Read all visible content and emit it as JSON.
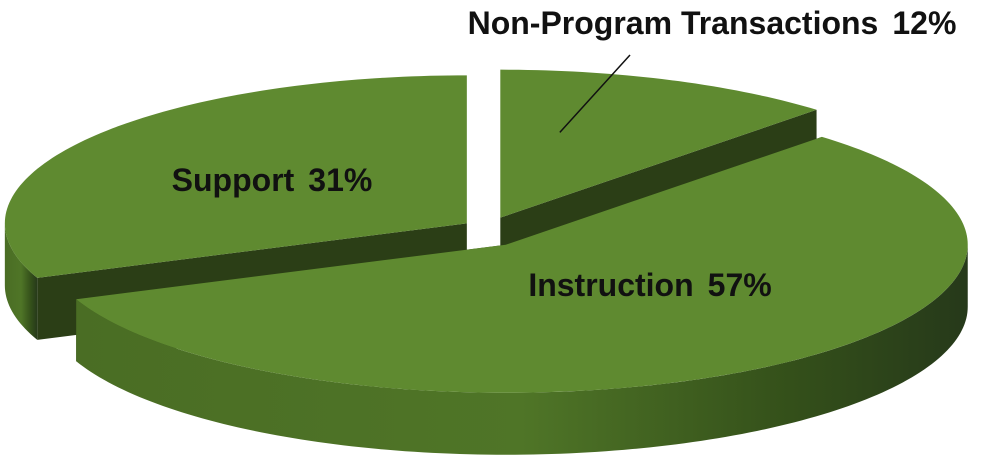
{
  "chart_data": {
    "type": "pie",
    "categories": [
      "Non-Program Transactions",
      "Instruction",
      "Support"
    ],
    "values": [
      12,
      57,
      31
    ],
    "value_labels": [
      "12%",
      "57%",
      "31%"
    ],
    "color": "#5f8a30"
  }
}
